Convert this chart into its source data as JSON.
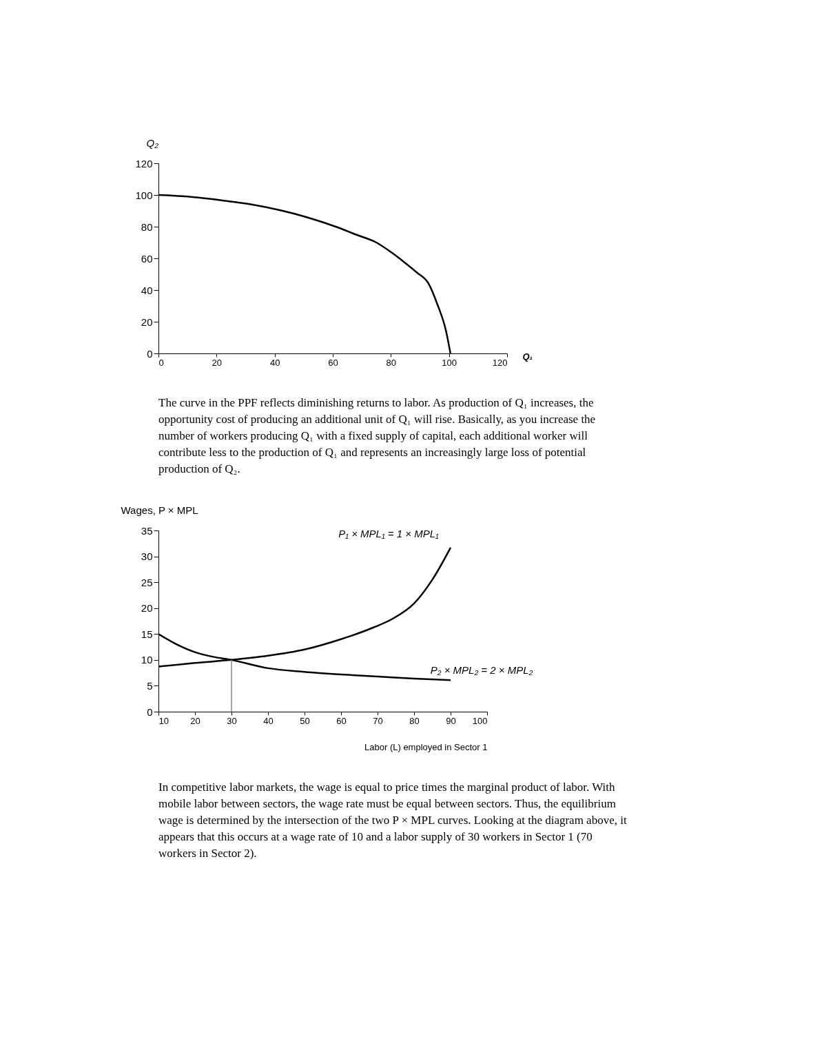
{
  "chart_data": [
    {
      "type": "line",
      "xlabel": "Q₁",
      "ylabel": "Q₂",
      "xlim": [
        0,
        120
      ],
      "ylim": [
        0,
        120
      ],
      "xticks": [
        0,
        20,
        40,
        60,
        80,
        100,
        120
      ],
      "yticks": [
        0,
        20,
        40,
        60,
        80,
        100,
        120
      ],
      "grid": false,
      "legend": false,
      "marker": "none",
      "line_style": "solid",
      "series": [
        {
          "color": "#000000",
          "x": [
            0,
            10,
            23,
            32,
            42,
            51,
            61,
            68,
            75,
            80,
            85,
            89,
            93,
            96,
            99,
            100.5
          ],
          "values": [
            100,
            99,
            96.3,
            94,
            90.3,
            86,
            80,
            75,
            70,
            64,
            57,
            51,
            44,
            31,
            14,
            0
          ]
        }
      ],
      "annotations": [
        "The curve in the PPF reflects diminishing returns to labor. As production of Q₁ increases, the opportunity cost of producing an additional unit of Q₁ will rise. Basically, as you increase the number of workers producing Q₁ with a fixed supply of capital, each additional worker will contribute less to the production of Q₁ and represents an increasingly large loss of potential production of Q₂."
      ]
    },
    {
      "type": "line",
      "xlabel": "Labor (L) employed in Sector 1",
      "ylabel": "Wages, P × MPL",
      "xlim": [
        10,
        100
      ],
      "ylim": [
        0,
        35
      ],
      "xticks": [
        10,
        20,
        30,
        40,
        50,
        60,
        70,
        80,
        90,
        100
      ],
      "yticks": [
        0,
        5,
        10,
        15,
        20,
        25,
        30,
        35
      ],
      "grid": false,
      "legend": false,
      "marker": "none",
      "line_style": "solid",
      "series": [
        {
          "name": "P₁ × MPL₁ = 1 × MPL₁",
          "color": "#000000",
          "x": [
            10,
            20,
            30,
            40,
            50,
            60,
            69,
            74,
            80,
            85,
            90
          ],
          "values": [
            8.7,
            9.4,
            10,
            10.8,
            12,
            14,
            16.3,
            17.9,
            20.9,
            25.5,
            31.7
          ]
        },
        {
          "name": "P₂ × MPL₂ = 2 × MPL₂",
          "color": "#000000",
          "x": [
            10,
            15,
            20,
            25,
            30,
            40,
            50,
            60,
            70,
            80,
            90
          ],
          "values": [
            15,
            13,
            11.5,
            10.6,
            10,
            8.4,
            7.7,
            7.2,
            6.8,
            6.4,
            6.1
          ]
        }
      ],
      "ref_lines": [
        {
          "axis": "x",
          "value": 30,
          "color": "#888888"
        }
      ],
      "annotations": [
        "In competitive labor markets, the wage is equal to price times the marginal product of labor. With mobile labor between sectors, the wage rate must be equal between sectors. Thus, the equilibrium wage is determined by the intersection of the two P × MPL curves. Looking at the diagram above, it appears that this occurs at a wage rate of 10 and a labor supply of 30 workers in Sector 1 (70 workers in Sector 2)."
      ]
    }
  ]
}
